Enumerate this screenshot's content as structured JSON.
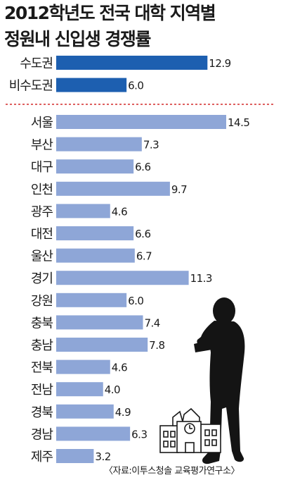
{
  "title": "2012학년도 전국 대학 지역별",
  "subtitle": "정원내 신입생 경쟁률",
  "source": "〈자료:이투스청솔 교육평가연구소〉",
  "colors": {
    "capital_bar": "#1d5fb0",
    "region_bar": "#8ea6d7",
    "divider": "#d42a2a",
    "label_text": "#1a1a1a",
    "silhouette": "#141414"
  },
  "illustration": {
    "figure": "reading-person-silhouette-icon",
    "building": "school-building-icon"
  },
  "chart_data": {
    "type": "bar",
    "orientation": "horizontal",
    "title": "2012학년도 전국 대학 지역별",
    "subtitle": "정원내 신입생 경쟁률",
    "xlim": [
      0,
      16
    ],
    "grid": false,
    "groups": [
      {
        "categories": [
          "수도권",
          "비수도권"
        ],
        "values": [
          12.9,
          6.0
        ],
        "labels": [
          "12.9",
          "6.0"
        ]
      },
      {
        "categories": [
          "서울",
          "부산",
          "대구",
          "인천",
          "광주",
          "대전",
          "울산",
          "경기",
          "강원",
          "충북",
          "충남",
          "전북",
          "전남",
          "경북",
          "경남",
          "제주"
        ],
        "values": [
          14.5,
          7.3,
          6.6,
          9.7,
          4.6,
          6.6,
          6.7,
          11.3,
          6.0,
          7.4,
          7.8,
          4.6,
          4.0,
          4.9,
          6.3,
          3.2
        ],
        "labels": [
          "14.5",
          "7.3",
          "6.6",
          "9.7",
          "4.6",
          "6.6",
          "6.7",
          "11.3",
          "6.0",
          "7.4",
          "7.8",
          "4.6",
          "4.0",
          "4.9",
          "6.3",
          "3.2"
        ]
      }
    ]
  }
}
